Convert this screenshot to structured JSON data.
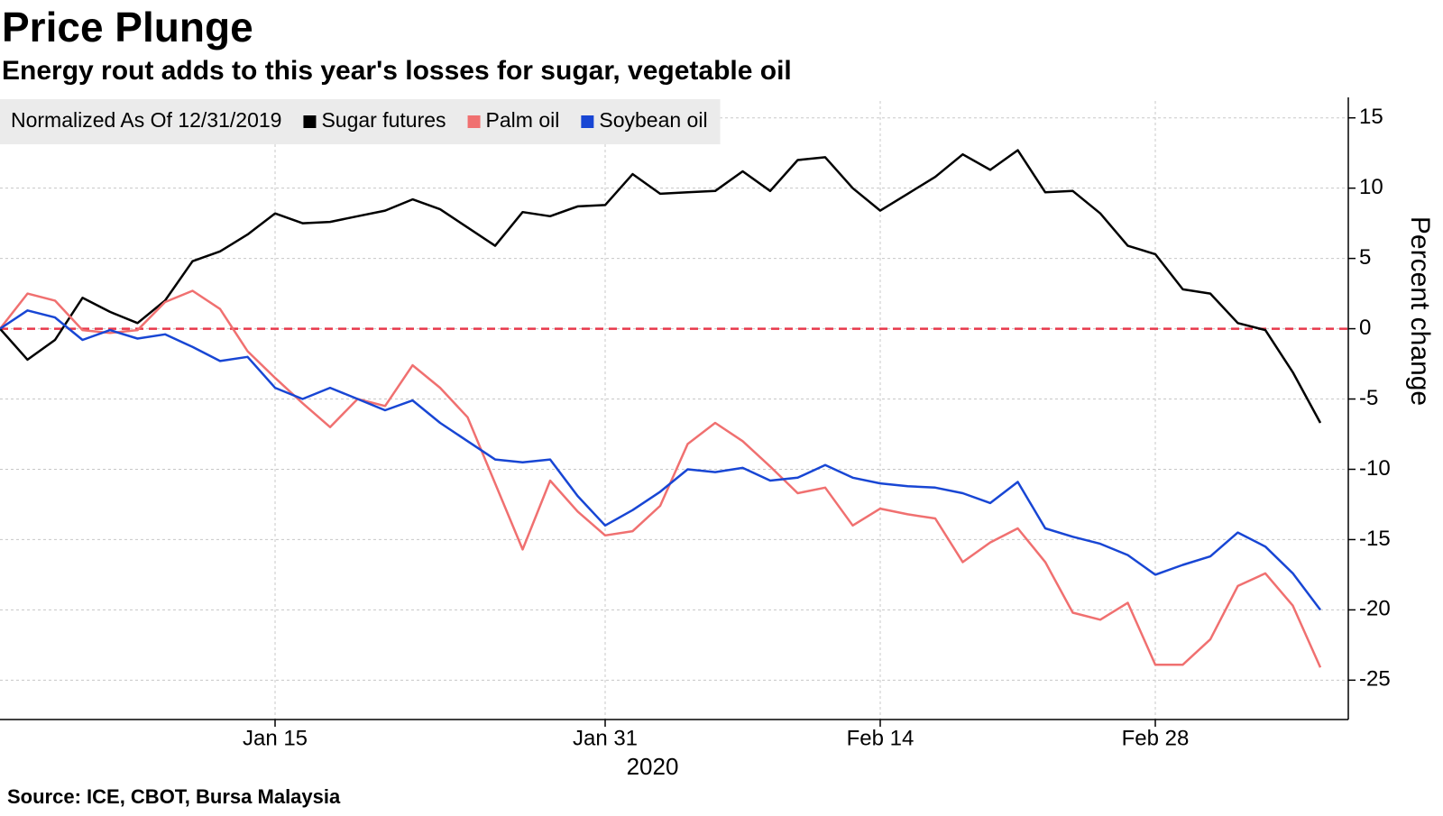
{
  "chart_data": {
    "type": "line",
    "title": "Price Plunge",
    "subtitle": "Energy rout adds to this year's losses for sugar, vegetable oil",
    "legend_title": "Normalized As Of 12/31/2019",
    "x_label": "2020",
    "y_label": "Percent change",
    "source": "Source: ICE, CBOT, Bursa Malaysia",
    "categories": [
      null,
      null,
      null,
      null,
      null,
      null,
      null,
      null,
      null,
      null,
      "Jan 15",
      null,
      null,
      null,
      null,
      null,
      null,
      null,
      null,
      null,
      null,
      null,
      "Jan 31",
      null,
      null,
      null,
      null,
      null,
      null,
      null,
      null,
      null,
      "Feb 14",
      null,
      null,
      null,
      null,
      null,
      null,
      null,
      null,
      null,
      "Feb 28",
      null,
      null,
      null,
      null,
      null,
      null
    ],
    "series": [
      {
        "name": "Sugar futures",
        "color": "#000000",
        "values": [
          0,
          -2.2,
          -0.8,
          2.2,
          1.2,
          0.4,
          2.0,
          4.8,
          5.5,
          6.7,
          8.2,
          7.5,
          7.6,
          8.0,
          8.4,
          9.2,
          8.5,
          7.2,
          5.9,
          8.3,
          8.0,
          8.7,
          8.8,
          11.0,
          9.6,
          9.7,
          9.8,
          11.2,
          9.8,
          12.0,
          12.2,
          10.0,
          8.4,
          9.6,
          10.8,
          12.4,
          11.3,
          12.7,
          9.7,
          9.8,
          8.2,
          5.9,
          5.3,
          2.8,
          2.5,
          0.4,
          -0.1,
          -3.1,
          -6.7
        ]
      },
      {
        "name": "Palm oil",
        "color": "#f07070",
        "values": [
          0,
          2.5,
          2.0,
          -0.1,
          -0.3,
          -0.1,
          1.9,
          2.7,
          1.4,
          -1.6,
          -3.5,
          -5.3,
          -7.0,
          -5.0,
          -5.5,
          -2.6,
          -4.2,
          -6.3,
          -11.0,
          -15.7,
          -10.8,
          -13.0,
          -14.7,
          -14.4,
          -12.6,
          -8.2,
          -6.7,
          -8.0,
          -9.8,
          -11.7,
          -11.3,
          -14.0,
          -12.8,
          -13.2,
          -13.5,
          -16.6,
          -15.2,
          -14.2,
          -16.6,
          -20.2,
          -20.7,
          -19.5,
          -23.9,
          -23.9,
          -22.1,
          -18.3,
          -17.4,
          -19.7,
          -24.1
        ]
      },
      {
        "name": "Soybean oil",
        "color": "#1846d4",
        "values": [
          0,
          1.3,
          0.8,
          -0.8,
          -0.1,
          -0.7,
          -0.4,
          -1.3,
          -2.3,
          -2.0,
          -4.2,
          -5.0,
          -4.2,
          -5.0,
          -5.8,
          -5.1,
          -6.7,
          -8.0,
          -9.3,
          -9.5,
          -9.3,
          -11.9,
          -14.0,
          -12.9,
          -11.6,
          -10.0,
          -10.2,
          -9.9,
          -10.8,
          -10.6,
          -9.7,
          -10.6,
          -11.0,
          -11.2,
          -11.3,
          -11.7,
          -12.4,
          -10.9,
          -14.2,
          -14.8,
          -15.3,
          -16.1,
          -17.5,
          -16.8,
          -16.2,
          -14.5,
          -15.5,
          -17.4,
          -20.0
        ]
      }
    ],
    "ylim": [
      -27.8,
      16.2
    ],
    "yticks": [
      -25,
      -20,
      -15,
      -10,
      -5,
      0,
      5,
      10,
      15
    ],
    "y_axis_side": "right",
    "grid": true,
    "reference_line": {
      "value": 0,
      "color": "#e8374a",
      "style": "dashed"
    }
  }
}
